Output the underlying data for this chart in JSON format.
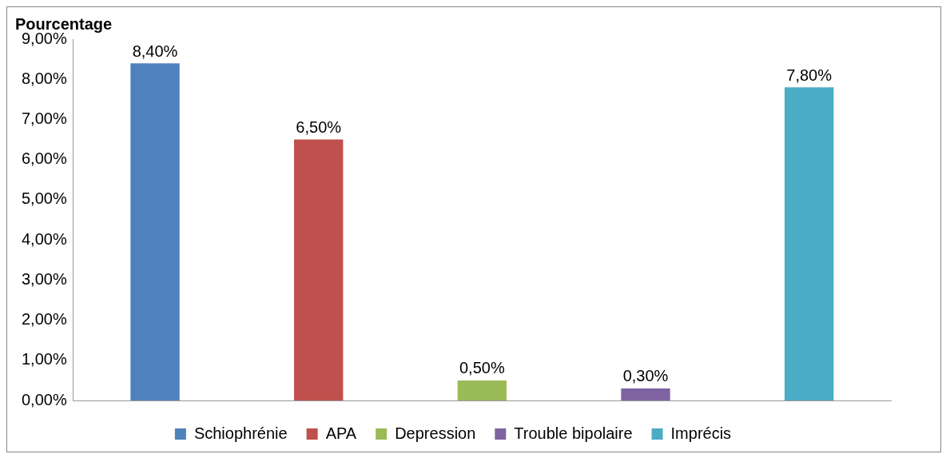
{
  "chart_data": {
    "type": "bar",
    "ylabel": "Pourcentage",
    "categories": [
      null,
      null,
      null,
      null,
      null
    ],
    "series": [
      {
        "name": "Schiophrénie",
        "color": "#4f81bd",
        "values": [
          8.4,
          null,
          null,
          null,
          null
        ],
        "value_labels": [
          "8,40%",
          null,
          null,
          null,
          null
        ]
      },
      {
        "name": "APA",
        "color": "#c0504d",
        "values": [
          null,
          6.5,
          null,
          null,
          null
        ],
        "value_labels": [
          null,
          "6,50%",
          null,
          null,
          null
        ]
      },
      {
        "name": "Depression",
        "color": "#9bbb59",
        "values": [
          null,
          null,
          0.5,
          null,
          null
        ],
        "value_labels": [
          null,
          null,
          "0,50%",
          null,
          null
        ]
      },
      {
        "name": "Trouble bipolaire",
        "color": "#8064a2",
        "values": [
          null,
          null,
          null,
          0.3,
          null
        ],
        "value_labels": [
          null,
          null,
          null,
          "0,30%",
          null
        ]
      },
      {
        "name": "Imprécis",
        "color": "#4bacc6",
        "values": [
          null,
          null,
          null,
          null,
          7.8
        ],
        "value_labels": [
          null,
          null,
          null,
          null,
          "7,80%"
        ]
      }
    ],
    "ylim": [
      0,
      9
    ],
    "yticks": [
      {
        "value": 0,
        "label": "0,00%"
      },
      {
        "value": 1,
        "label": "1,00%"
      },
      {
        "value": 2,
        "label": "2,00%"
      },
      {
        "value": 3,
        "label": "3,00%"
      },
      {
        "value": 4,
        "label": "4,00%"
      },
      {
        "value": 5,
        "label": "5,00%"
      },
      {
        "value": 6,
        "label": "6,00%"
      },
      {
        "value": 7,
        "label": "7,00%"
      },
      {
        "value": 8,
        "label": "8,00%"
      },
      {
        "value": 9,
        "label": "9,00%"
      }
    ],
    "grid": false,
    "legend": "bottom"
  }
}
